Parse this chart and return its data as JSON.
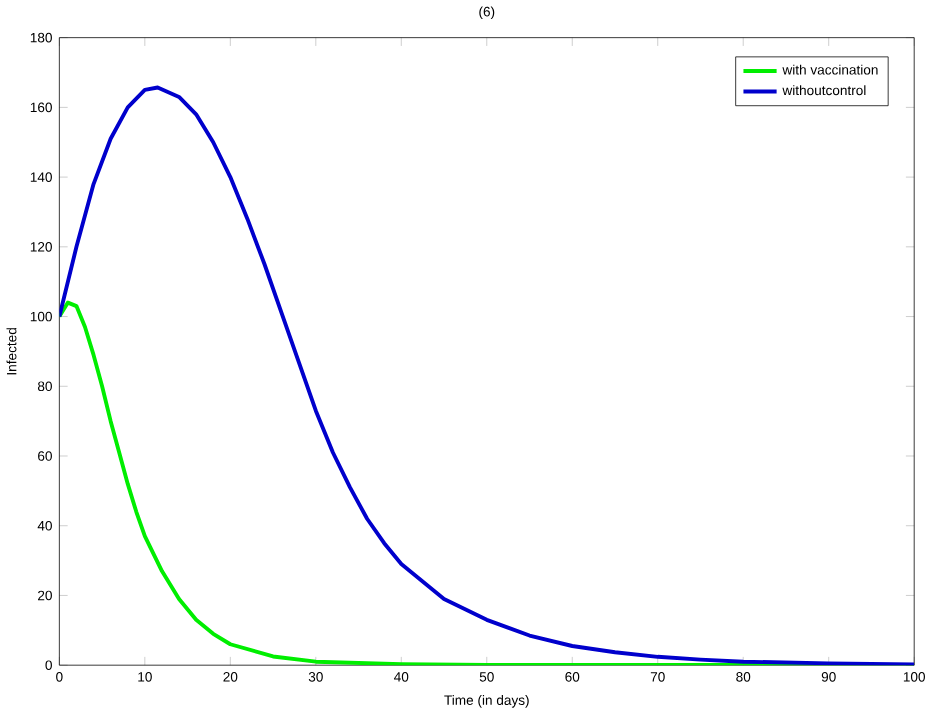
{
  "chart_data": {
    "type": "line",
    "title": "(6)",
    "xlabel": "Time (in days)",
    "ylabel": "Infected",
    "xlim": [
      0,
      100
    ],
    "ylim": [
      0,
      180
    ],
    "xticks": [
      0,
      10,
      20,
      30,
      40,
      50,
      60,
      70,
      80,
      90,
      100
    ],
    "yticks": [
      0,
      20,
      40,
      60,
      80,
      100,
      120,
      140,
      160,
      180
    ],
    "legend": "top right",
    "grid": false,
    "marker": "none",
    "line_style": "solid",
    "series": [
      {
        "name": "with vaccination",
        "color": "#00ee00",
        "x": [
          0,
          1,
          2,
          3,
          4,
          5,
          6,
          7,
          8,
          9,
          10,
          12,
          14,
          16,
          18,
          20,
          25,
          30,
          40,
          50,
          100
        ],
        "values": [
          100,
          104,
          103,
          97,
          89,
          80,
          70,
          61,
          52,
          44,
          37,
          27,
          19,
          13,
          9,
          6,
          2.5,
          1,
          0.3,
          0.1,
          0
        ]
      },
      {
        "name": "withoutcontrol",
        "color": "#0000cc",
        "x": [
          0,
          2,
          4,
          6,
          8,
          10,
          11.5,
          14,
          16,
          18,
          20,
          22,
          24,
          26,
          28,
          30,
          32,
          34,
          36,
          38,
          40,
          45,
          50,
          55,
          60,
          65,
          70,
          75,
          80,
          90,
          100
        ],
        "values": [
          100,
          120,
          138,
          151,
          160,
          165,
          165.7,
          163,
          158,
          150,
          140,
          128,
          115,
          101,
          87,
          73,
          61,
          51,
          42,
          35,
          29,
          19,
          13,
          8.5,
          5.5,
          3.7,
          2.4,
          1.6,
          1,
          0.5,
          0.2
        ]
      }
    ]
  }
}
